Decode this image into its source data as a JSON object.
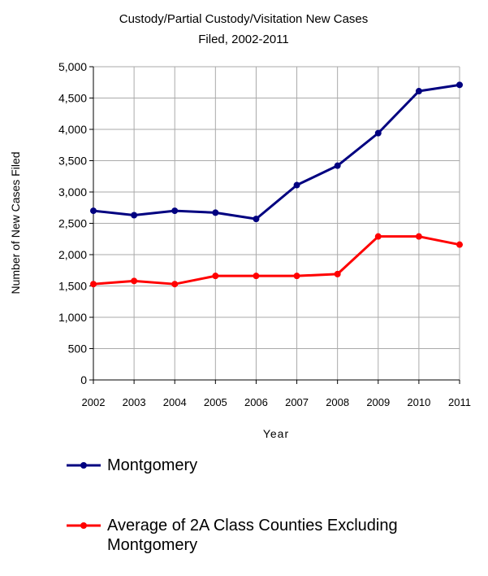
{
  "chart_data": {
    "type": "line",
    "title_lines": [
      "Custody/Partial Custody/Visitation New  Cases",
      "Filed, 2002-2011"
    ],
    "xlabel": "Year",
    "ylabel": "Number of New Cases Filed",
    "x": [
      "2002",
      "2003",
      "2004",
      "2005",
      "2006",
      "2007",
      "2008",
      "2009",
      "2010",
      "2011"
    ],
    "y_ticks": [
      "0",
      "500",
      "1,000",
      "1,500",
      "2,000",
      "2,500",
      "3,000",
      "3,500",
      "4,000",
      "4,500",
      "5,000"
    ],
    "ylim": [
      0,
      5000
    ],
    "grid": true,
    "legend_position": "bottom",
    "series": [
      {
        "name": "Montgomery",
        "color": "#000080",
        "values": [
          2700,
          2630,
          2700,
          2670,
          2570,
          3110,
          3420,
          3940,
          4610,
          4710
        ]
      },
      {
        "name": "Average of 2A Class Counties Excluding Montgomery",
        "color": "#ff0000",
        "values": [
          1530,
          1580,
          1530,
          1660,
          1660,
          1660,
          1690,
          2290,
          2290,
          2160
        ]
      }
    ]
  }
}
